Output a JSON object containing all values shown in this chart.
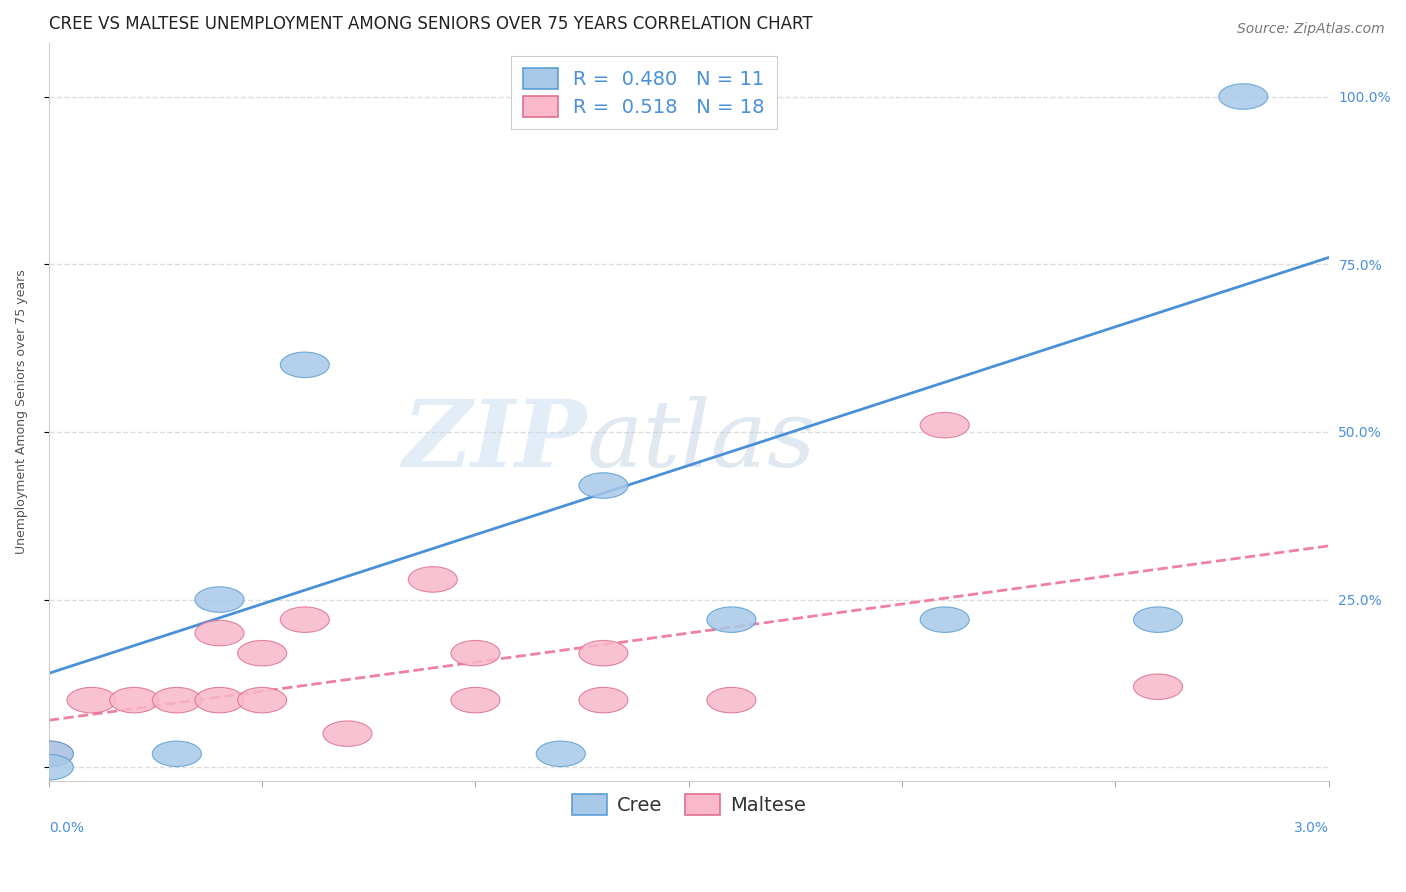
{
  "title": "CREE VS MALTESE UNEMPLOYMENT AMONG SENIORS OVER 75 YEARS CORRELATION CHART",
  "source": "Source: ZipAtlas.com",
  "ylabel": "Unemployment Among Seniors over 75 years",
  "ytick_labels": [
    "",
    "25.0%",
    "50.0%",
    "75.0%",
    "100.0%"
  ],
  "ytick_values": [
    0,
    0.25,
    0.5,
    0.75,
    1.0
  ],
  "xlim": [
    0.0,
    0.03
  ],
  "ylim": [
    -0.02,
    1.08
  ],
  "cree_color": "#a8c8e8",
  "cree_edge_color": "#5a9fd4",
  "cree_line_color": "#4a90d9",
  "maltese_color": "#f9b8cb",
  "maltese_edge_color": "#e07090",
  "maltese_line_color": "#f080a0",
  "cree_R": 0.48,
  "cree_N": 11,
  "maltese_R": 0.518,
  "maltese_N": 18,
  "watermark_zip": "ZIP",
  "watermark_atlas": "atlas",
  "cree_points": [
    [
      0.0,
      0.02
    ],
    [
      0.0,
      0.0
    ],
    [
      0.003,
      0.02
    ],
    [
      0.004,
      0.25
    ],
    [
      0.006,
      0.6
    ],
    [
      0.012,
      0.02
    ],
    [
      0.013,
      0.42
    ],
    [
      0.016,
      0.22
    ],
    [
      0.021,
      0.22
    ],
    [
      0.026,
      0.22
    ],
    [
      0.028,
      1.0
    ]
  ],
  "maltese_points": [
    [
      0.0,
      0.02
    ],
    [
      0.001,
      0.1
    ],
    [
      0.002,
      0.1
    ],
    [
      0.003,
      0.1
    ],
    [
      0.004,
      0.2
    ],
    [
      0.004,
      0.1
    ],
    [
      0.005,
      0.1
    ],
    [
      0.005,
      0.17
    ],
    [
      0.006,
      0.22
    ],
    [
      0.007,
      0.05
    ],
    [
      0.009,
      0.28
    ],
    [
      0.01,
      0.1
    ],
    [
      0.01,
      0.17
    ],
    [
      0.013,
      0.17
    ],
    [
      0.013,
      0.1
    ],
    [
      0.016,
      0.1
    ],
    [
      0.021,
      0.51
    ],
    [
      0.026,
      0.12
    ]
  ],
  "cree_line_x": [
    0.0,
    0.03
  ],
  "cree_line_y": [
    0.14,
    0.76
  ],
  "maltese_line_x": [
    0.0,
    0.03
  ],
  "maltese_line_y": [
    0.07,
    0.33
  ],
  "background_color": "#ffffff",
  "grid_color": "#dddddd",
  "title_fontsize": 12,
  "axis_label_fontsize": 9,
  "tick_fontsize": 10,
  "legend_fontsize": 14,
  "source_fontsize": 10
}
